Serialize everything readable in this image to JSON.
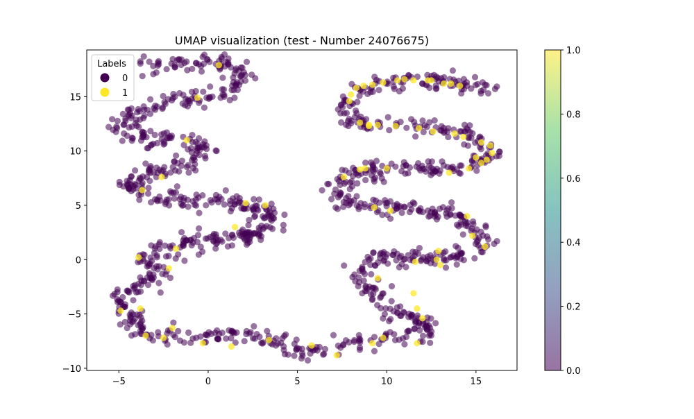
{
  "chart_data": {
    "type": "scatter",
    "title": "UMAP visualization (test - Number 24076675)",
    "xlabel": "",
    "ylabel": "",
    "xlim": [
      -6.8,
      17.3
    ],
    "ylim": [
      -10.2,
      19.3
    ],
    "x_ticks": [
      -5,
      0,
      5,
      10,
      15
    ],
    "y_ticks": [
      -10,
      -5,
      0,
      5,
      10,
      15
    ],
    "x_tick_labels": [
      "−5",
      "0",
      "5",
      "10",
      "15"
    ],
    "y_tick_labels": [
      "−10",
      "−5",
      "0",
      "5",
      "10",
      "15"
    ],
    "grid": false,
    "legend": {
      "title": "Labels",
      "placement": "top-left",
      "entries": [
        "0",
        "1"
      ]
    },
    "colorbar": {
      "range": [
        0.0,
        1.0
      ],
      "ticks": [
        0.0,
        0.2,
        0.4,
        0.6,
        0.8,
        1.0
      ],
      "tick_labels": [
        "0.0",
        "0.2",
        "0.4",
        "0.6",
        "0.8",
        "1.0"
      ],
      "colormap": "viridis"
    },
    "colors": {
      "label_0": "#440154",
      "label_1": "#fde725"
    },
    "series": [
      {
        "name": "0",
        "curve": [
          [
            -3.8,
            17.6
          ],
          [
            -1,
            18
          ],
          [
            1,
            18.1
          ],
          [
            2,
            17.2
          ],
          [
            1.3,
            15.6
          ],
          [
            -1,
            14.6
          ],
          [
            -3.5,
            14.2
          ],
          [
            -5.1,
            12.3
          ],
          [
            -3.5,
            11
          ],
          [
            -1,
            11
          ],
          [
            0,
            10.3
          ],
          [
            -0.8,
            9
          ],
          [
            -3,
            8.3
          ],
          [
            -4.5,
            6.7
          ],
          [
            -3.2,
            5.6
          ],
          [
            -1,
            5.3
          ],
          [
            1,
            5.5
          ],
          [
            3,
            4.8
          ],
          [
            3.5,
            3.4
          ],
          [
            2.2,
            2.1
          ],
          [
            0,
            1.8
          ],
          [
            -2,
            1.4
          ],
          [
            -3.5,
            0.2
          ],
          [
            -2.8,
            -1.2
          ],
          [
            -3.5,
            -2
          ],
          [
            -5,
            -3.8
          ],
          [
            -4.5,
            -5
          ],
          [
            -3.5,
            -7
          ],
          [
            -1,
            -7.2
          ],
          [
            1,
            -6.8
          ],
          [
            3,
            -7.2
          ],
          [
            4.5,
            -8.3
          ],
          [
            7,
            -8.2
          ],
          [
            9,
            -7.5
          ],
          [
            11,
            -7.2
          ],
          [
            12.5,
            -6.8
          ],
          [
            12,
            -5.8
          ],
          [
            10.5,
            -5
          ],
          [
            9.5,
            -4
          ],
          [
            9,
            -2.5
          ],
          [
            8.5,
            -1.5
          ],
          [
            8.7,
            -0.2
          ],
          [
            10,
            0.2
          ],
          [
            12.5,
            0.2
          ],
          [
            14.5,
            0.5
          ],
          [
            15.6,
            1.5
          ],
          [
            15,
            3
          ],
          [
            13.5,
            4.2
          ],
          [
            11.5,
            4.8
          ],
          [
            9.5,
            4.9
          ],
          [
            7.5,
            5.3
          ],
          [
            7.3,
            7.2
          ],
          [
            9,
            8.2
          ],
          [
            11,
            8.3
          ],
          [
            13.5,
            8.2
          ],
          [
            15.5,
            9.2
          ],
          [
            15.8,
            10.2
          ],
          [
            14.5,
            11.5
          ],
          [
            12,
            12.2
          ],
          [
            10,
            12.3
          ],
          [
            8,
            12.5
          ],
          [
            7.7,
            14
          ],
          [
            8,
            15.5
          ],
          [
            10,
            16.5
          ],
          [
            12,
            16.6
          ],
          [
            14,
            16.3
          ],
          [
            16,
            15.7
          ]
        ],
        "point_count": 1360,
        "spread": 0.42,
        "seed": 1
      },
      {
        "name": "1",
        "points": [
          [
            7.9,
            14.6
          ],
          [
            8.0,
            15.2
          ],
          [
            8.3,
            15.8
          ],
          [
            8.7,
            16.0
          ],
          [
            9.2,
            16.1
          ],
          [
            9.8,
            16.3
          ],
          [
            10.6,
            16.5
          ],
          [
            11.0,
            16.6
          ],
          [
            11.5,
            16.5
          ],
          [
            12.5,
            16.5
          ],
          [
            13.2,
            16.2
          ],
          [
            13.6,
            16.2
          ],
          [
            8.5,
            12.6
          ],
          [
            9.0,
            12.3
          ],
          [
            9.5,
            12.4
          ],
          [
            10.5,
            12.3
          ],
          [
            11.8,
            12.1
          ],
          [
            12.6,
            11.8
          ],
          [
            13.8,
            11.6
          ],
          [
            14.3,
            11.3
          ],
          [
            15.3,
            10.8
          ],
          [
            15.8,
            10.5
          ],
          [
            15.9,
            9.8
          ],
          [
            15.6,
            9.2
          ],
          [
            15.3,
            8.9
          ],
          [
            14.6,
            8.4
          ],
          [
            13.5,
            8.0
          ],
          [
            10.0,
            8.4
          ],
          [
            8.8,
            8.4
          ],
          [
            7.6,
            7.6
          ],
          [
            9.3,
            4.8
          ],
          [
            10.2,
            4.5
          ],
          [
            14.5,
            4.0
          ],
          [
            14.8,
            2.2
          ],
          [
            15.5,
            1.2
          ],
          [
            12.9,
            0.8
          ],
          [
            12.8,
            0.0
          ],
          [
            11.6,
            -0.2
          ],
          [
            9.5,
            -1.7
          ],
          [
            11.5,
            -3.1
          ],
          [
            11.7,
            -4.5
          ],
          [
            12.0,
            -5.4
          ],
          [
            11.7,
            -7.7
          ],
          [
            9.2,
            -7.7
          ],
          [
            7.2,
            -8.8
          ],
          [
            5.8,
            -7.9
          ],
          [
            3.4,
            -7.4
          ],
          [
            1.3,
            -8.0
          ],
          [
            -0.3,
            -7.7
          ],
          [
            -2.5,
            -7.2
          ],
          [
            -3.5,
            -7.0
          ],
          [
            -2.0,
            -6.3
          ],
          [
            -4.9,
            -4.7
          ],
          [
            -3.8,
            -4.5
          ],
          [
            -2.2,
            -0.8
          ],
          [
            -1.8,
            1.0
          ],
          [
            -3.9,
            0.2
          ],
          [
            1.5,
            3.0
          ],
          [
            3.2,
            5.0
          ],
          [
            2.1,
            5.2
          ],
          [
            -2.6,
            7.6
          ],
          [
            -3.7,
            6.4
          ],
          [
            -0.6,
            14.9
          ],
          [
            12.3,
            16.5
          ],
          [
            14.1,
            16.0
          ],
          [
            9.0,
            12.4
          ],
          [
            15.0,
            9.4
          ],
          [
            8.5,
            8.3
          ],
          [
            13.0,
            -0.5
          ],
          [
            9.8,
            -7.2
          ],
          [
            -1.2,
            11.0
          ],
          [
            0.6,
            17.9
          ]
        ]
      }
    ]
  }
}
